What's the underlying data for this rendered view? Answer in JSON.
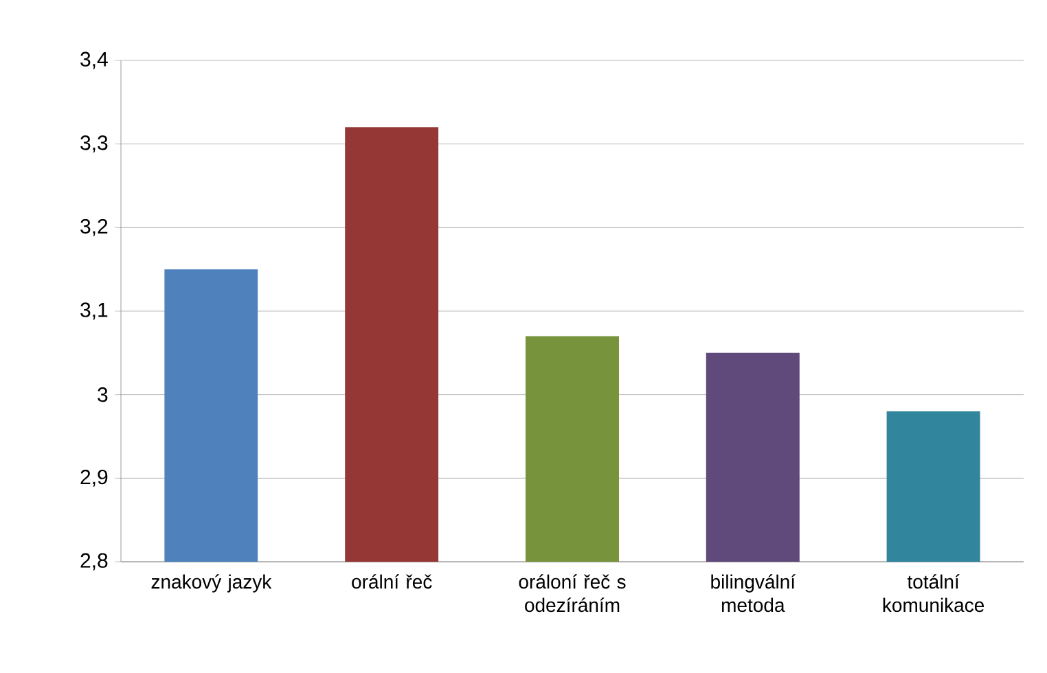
{
  "chart_data": {
    "type": "bar",
    "categories": [
      "znakový jazyk",
      "orální řeč",
      "oráloní řeč s odezíráním",
      "bilingvální metoda",
      "totální komunikace"
    ],
    "values": [
      3.15,
      3.32,
      3.07,
      3.05,
      2.98
    ],
    "colors": [
      "#4f81bd",
      "#953735",
      "#77933c",
      "#604a7b",
      "#31859c"
    ],
    "ylim": [
      2.8,
      3.4
    ],
    "yticks": [
      {
        "value": 2.8,
        "label": "2,8"
      },
      {
        "value": 2.9,
        "label": "2,9"
      },
      3,
      {
        "value": 3.1,
        "label": "3,1"
      },
      {
        "value": 3.2,
        "label": "3,2"
      },
      {
        "value": 3.3,
        "label": "3,3"
      },
      {
        "value": 3.4,
        "label": "3,4"
      }
    ],
    "grid": "y"
  }
}
